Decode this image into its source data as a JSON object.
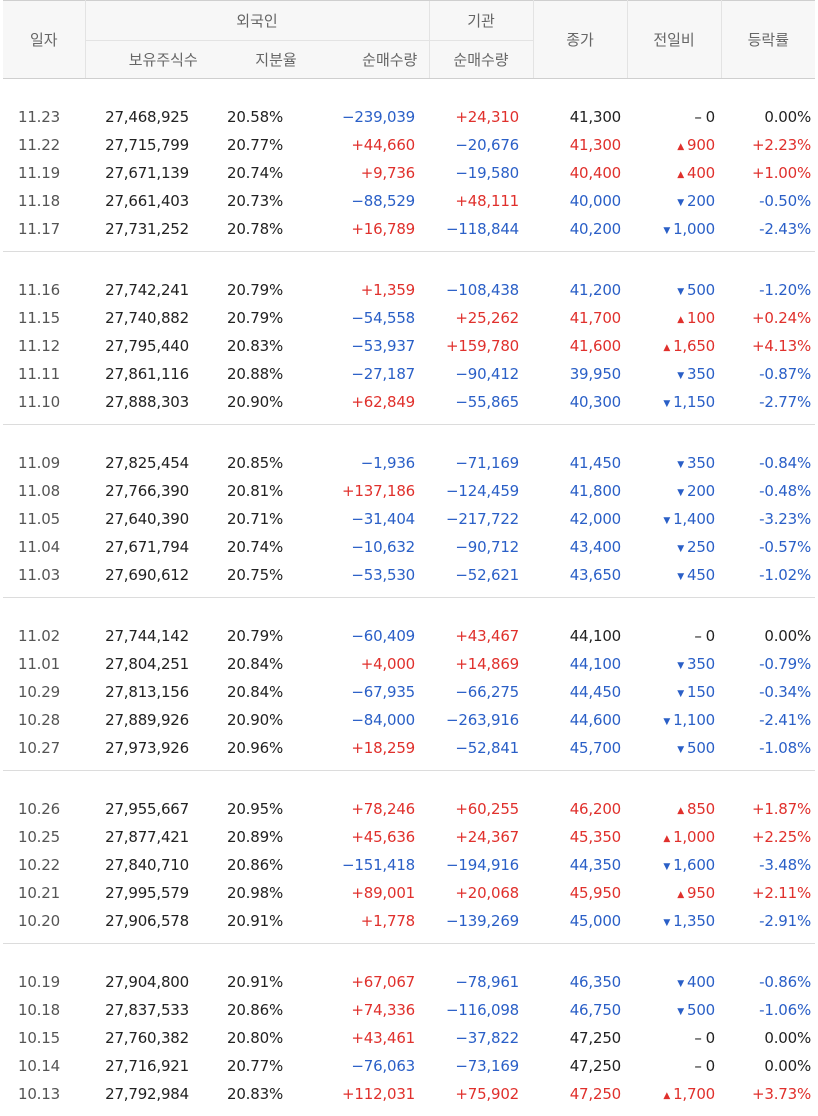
{
  "header": {
    "date": "일자",
    "foreign": "외국인",
    "institution": "기관",
    "close": "종가",
    "change": "전일비",
    "rate": "등락률",
    "holdings": "보유주식수",
    "ratio": "지분율",
    "foreign_net": "순매수량",
    "inst_net": "순매수량"
  },
  "colors": {
    "up": "#e0302c",
    "down": "#2a5fc7"
  },
  "rows": [
    {
      "date": "11.23",
      "holdings": "27,468,925",
      "ratio": "20.58%",
      "fnet": "−239,039",
      "fdir": "down",
      "inet": "+24,310",
      "idir": "up",
      "close": "41,300",
      "dir": "flat",
      "arrow": "",
      "chg": "0",
      "rate": "0.00%"
    },
    {
      "date": "11.22",
      "holdings": "27,715,799",
      "ratio": "20.77%",
      "fnet": "+44,660",
      "fdir": "up",
      "inet": "−20,676",
      "idir": "down",
      "close": "41,300",
      "dir": "up",
      "arrow": "▲",
      "chg": "900",
      "rate": "+2.23%"
    },
    {
      "date": "11.19",
      "holdings": "27,671,139",
      "ratio": "20.74%",
      "fnet": "+9,736",
      "fdir": "up",
      "inet": "−19,580",
      "idir": "down",
      "close": "40,400",
      "dir": "up",
      "arrow": "▲",
      "chg": "400",
      "rate": "+1.00%"
    },
    {
      "date": "11.18",
      "holdings": "27,661,403",
      "ratio": "20.73%",
      "fnet": "−88,529",
      "fdir": "down",
      "inet": "+48,111",
      "idir": "up",
      "close": "40,000",
      "dir": "down",
      "arrow": "▼",
      "chg": "200",
      "rate": "-0.50%"
    },
    {
      "date": "11.17",
      "holdings": "27,731,252",
      "ratio": "20.78%",
      "fnet": "+16,789",
      "fdir": "up",
      "inet": "−118,844",
      "idir": "down",
      "close": "40,200",
      "dir": "down",
      "arrow": "▼",
      "chg": "1,000",
      "rate": "-2.43%"
    },
    {
      "date": "11.16",
      "holdings": "27,742,241",
      "ratio": "20.79%",
      "fnet": "+1,359",
      "fdir": "up",
      "inet": "−108,438",
      "idir": "down",
      "close": "41,200",
      "dir": "down",
      "arrow": "▼",
      "chg": "500",
      "rate": "-1.20%"
    },
    {
      "date": "11.15",
      "holdings": "27,740,882",
      "ratio": "20.79%",
      "fnet": "−54,558",
      "fdir": "down",
      "inet": "+25,262",
      "idir": "up",
      "close": "41,700",
      "dir": "up",
      "arrow": "▲",
      "chg": "100",
      "rate": "+0.24%"
    },
    {
      "date": "11.12",
      "holdings": "27,795,440",
      "ratio": "20.83%",
      "fnet": "−53,937",
      "fdir": "down",
      "inet": "+159,780",
      "idir": "up",
      "close": "41,600",
      "dir": "up",
      "arrow": "▲",
      "chg": "1,650",
      "rate": "+4.13%"
    },
    {
      "date": "11.11",
      "holdings": "27,861,116",
      "ratio": "20.88%",
      "fnet": "−27,187",
      "fdir": "down",
      "inet": "−90,412",
      "idir": "down",
      "close": "39,950",
      "dir": "down",
      "arrow": "▼",
      "chg": "350",
      "rate": "-0.87%"
    },
    {
      "date": "11.10",
      "holdings": "27,888,303",
      "ratio": "20.90%",
      "fnet": "+62,849",
      "fdir": "up",
      "inet": "−55,865",
      "idir": "down",
      "close": "40,300",
      "dir": "down",
      "arrow": "▼",
      "chg": "1,150",
      "rate": "-2.77%"
    },
    {
      "date": "11.09",
      "holdings": "27,825,454",
      "ratio": "20.85%",
      "fnet": "−1,936",
      "fdir": "down",
      "inet": "−71,169",
      "idir": "down",
      "close": "41,450",
      "dir": "down",
      "arrow": "▼",
      "chg": "350",
      "rate": "-0.84%"
    },
    {
      "date": "11.08",
      "holdings": "27,766,390",
      "ratio": "20.81%",
      "fnet": "+137,186",
      "fdir": "up",
      "inet": "−124,459",
      "idir": "down",
      "close": "41,800",
      "dir": "down",
      "arrow": "▼",
      "chg": "200",
      "rate": "-0.48%"
    },
    {
      "date": "11.05",
      "holdings": "27,640,390",
      "ratio": "20.71%",
      "fnet": "−31,404",
      "fdir": "down",
      "inet": "−217,722",
      "idir": "down",
      "close": "42,000",
      "dir": "down",
      "arrow": "▼",
      "chg": "1,400",
      "rate": "-3.23%"
    },
    {
      "date": "11.04",
      "holdings": "27,671,794",
      "ratio": "20.74%",
      "fnet": "−10,632",
      "fdir": "down",
      "inet": "−90,712",
      "idir": "down",
      "close": "43,400",
      "dir": "down",
      "arrow": "▼",
      "chg": "250",
      "rate": "-0.57%"
    },
    {
      "date": "11.03",
      "holdings": "27,690,612",
      "ratio": "20.75%",
      "fnet": "−53,530",
      "fdir": "down",
      "inet": "−52,621",
      "idir": "down",
      "close": "43,650",
      "dir": "down",
      "arrow": "▼",
      "chg": "450",
      "rate": "-1.02%"
    },
    {
      "date": "11.02",
      "holdings": "27,744,142",
      "ratio": "20.79%",
      "fnet": "−60,409",
      "fdir": "down",
      "inet": "+43,467",
      "idir": "up",
      "close": "44,100",
      "dir": "flat",
      "arrow": "",
      "chg": "0",
      "rate": "0.00%"
    },
    {
      "date": "11.01",
      "holdings": "27,804,251",
      "ratio": "20.84%",
      "fnet": "+4,000",
      "fdir": "up",
      "inet": "+14,869",
      "idir": "up",
      "close": "44,100",
      "dir": "down",
      "arrow": "▼",
      "chg": "350",
      "rate": "-0.79%"
    },
    {
      "date": "10.29",
      "holdings": "27,813,156",
      "ratio": "20.84%",
      "fnet": "−67,935",
      "fdir": "down",
      "inet": "−66,275",
      "idir": "down",
      "close": "44,450",
      "dir": "down",
      "arrow": "▼",
      "chg": "150",
      "rate": "-0.34%"
    },
    {
      "date": "10.28",
      "holdings": "27,889,926",
      "ratio": "20.90%",
      "fnet": "−84,000",
      "fdir": "down",
      "inet": "−263,916",
      "idir": "down",
      "close": "44,600",
      "dir": "down",
      "arrow": "▼",
      "chg": "1,100",
      "rate": "-2.41%"
    },
    {
      "date": "10.27",
      "holdings": "27,973,926",
      "ratio": "20.96%",
      "fnet": "+18,259",
      "fdir": "up",
      "inet": "−52,841",
      "idir": "down",
      "close": "45,700",
      "dir": "down",
      "arrow": "▼",
      "chg": "500",
      "rate": "-1.08%"
    },
    {
      "date": "10.26",
      "holdings": "27,955,667",
      "ratio": "20.95%",
      "fnet": "+78,246",
      "fdir": "up",
      "inet": "+60,255",
      "idir": "up",
      "close": "46,200",
      "dir": "up",
      "arrow": "▲",
      "chg": "850",
      "rate": "+1.87%"
    },
    {
      "date": "10.25",
      "holdings": "27,877,421",
      "ratio": "20.89%",
      "fnet": "+45,636",
      "fdir": "up",
      "inet": "+24,367",
      "idir": "up",
      "close": "45,350",
      "dir": "up",
      "arrow": "▲",
      "chg": "1,000",
      "rate": "+2.25%"
    },
    {
      "date": "10.22",
      "holdings": "27,840,710",
      "ratio": "20.86%",
      "fnet": "−151,418",
      "fdir": "down",
      "inet": "−194,916",
      "idir": "down",
      "close": "44,350",
      "dir": "down",
      "arrow": "▼",
      "chg": "1,600",
      "rate": "-3.48%"
    },
    {
      "date": "10.21",
      "holdings": "27,995,579",
      "ratio": "20.98%",
      "fnet": "+89,001",
      "fdir": "up",
      "inet": "+20,068",
      "idir": "up",
      "close": "45,950",
      "dir": "up",
      "arrow": "▲",
      "chg": "950",
      "rate": "+2.11%"
    },
    {
      "date": "10.20",
      "holdings": "27,906,578",
      "ratio": "20.91%",
      "fnet": "+1,778",
      "fdir": "up",
      "inet": "−139,269",
      "idir": "down",
      "close": "45,000",
      "dir": "down",
      "arrow": "▼",
      "chg": "1,350",
      "rate": "-2.91%"
    },
    {
      "date": "10.19",
      "holdings": "27,904,800",
      "ratio": "20.91%",
      "fnet": "+67,067",
      "fdir": "up",
      "inet": "−78,961",
      "idir": "down",
      "close": "46,350",
      "dir": "down",
      "arrow": "▼",
      "chg": "400",
      "rate": "-0.86%"
    },
    {
      "date": "10.18",
      "holdings": "27,837,533",
      "ratio": "20.86%",
      "fnet": "+74,336",
      "fdir": "up",
      "inet": "−116,098",
      "idir": "down",
      "close": "46,750",
      "dir": "down",
      "arrow": "▼",
      "chg": "500",
      "rate": "-1.06%"
    },
    {
      "date": "10.15",
      "holdings": "27,760,382",
      "ratio": "20.80%",
      "fnet": "+43,461",
      "fdir": "up",
      "inet": "−37,822",
      "idir": "down",
      "close": "47,250",
      "dir": "flat",
      "arrow": "",
      "chg": "0",
      "rate": "0.00%"
    },
    {
      "date": "10.14",
      "holdings": "27,716,921",
      "ratio": "20.77%",
      "fnet": "−76,063",
      "fdir": "down",
      "inet": "−73,169",
      "idir": "down",
      "close": "47,250",
      "dir": "flat",
      "arrow": "",
      "chg": "0",
      "rate": "0.00%"
    },
    {
      "date": "10.13",
      "holdings": "27,792,984",
      "ratio": "20.83%",
      "fnet": "+112,031",
      "fdir": "up",
      "inet": "+75,902",
      "idir": "up",
      "close": "47,250",
      "dir": "up",
      "arrow": "▲",
      "chg": "1,700",
      "rate": "+3.73%"
    }
  ]
}
